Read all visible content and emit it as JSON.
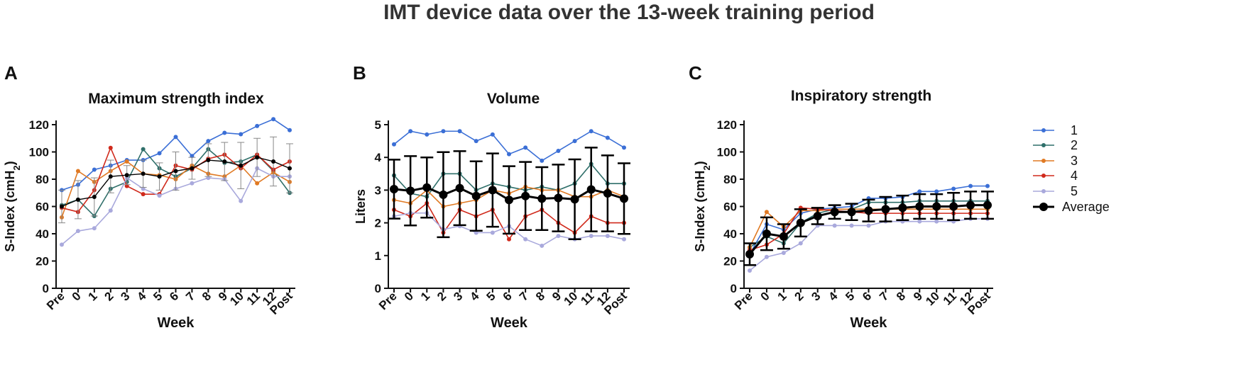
{
  "figure_title": "IMT device data over the 13-week training period",
  "legend": {
    "entries": [
      {
        "label": "1",
        "color": "#3b6fd6"
      },
      {
        "label": "2",
        "color": "#2f6f6a"
      },
      {
        "label": "3",
        "color": "#e07a24"
      },
      {
        "label": "4",
        "color": "#d02a1c"
      },
      {
        "label": "5",
        "color": "#a9a9dc"
      },
      {
        "label": "Average",
        "color": "#000000"
      }
    ]
  },
  "chart_data": [
    {
      "panel": "A",
      "type": "line",
      "title": "Maximum strength index",
      "xlabel": "Week",
      "ylabel": "S-Index (cmH",
      "ylabel_sub": "2",
      "ylabel_end": ")",
      "ylim": [
        0,
        120
      ],
      "yticks": [
        0,
        20,
        40,
        60,
        80,
        100,
        120
      ],
      "categories": [
        "Pre",
        "0",
        "1",
        "2",
        "3",
        "4",
        "5",
        "6",
        "7",
        "8",
        "9",
        "10",
        "11",
        "12",
        "Post"
      ],
      "series": [
        {
          "name": "1",
          "values": [
            72,
            76,
            87,
            90,
            94,
            94,
            99,
            111,
            97,
            108,
            114,
            113,
            119,
            124,
            116
          ]
        },
        {
          "name": "2",
          "values": [
            61,
            65,
            53,
            73,
            78,
            102,
            88,
            82,
            88,
            102,
            92,
            93,
            98,
            86,
            70
          ]
        },
        {
          "name": "3",
          "values": [
            52,
            86,
            78,
            86,
            93,
            84,
            83,
            80,
            90,
            84,
            82,
            90,
            77,
            85,
            78
          ]
        },
        {
          "name": "4",
          "values": [
            59,
            56,
            72,
            103,
            75,
            69,
            69,
            90,
            87,
            95,
            98,
            88,
            98,
            87,
            93
          ]
        },
        {
          "name": "5",
          "values": [
            32,
            42,
            44,
            57,
            81,
            73,
            68,
            73,
            77,
            81,
            80,
            64,
            88,
            82,
            82
          ]
        }
      ],
      "average": {
        "name": "Average",
        "values": [
          60,
          65,
          67,
          82,
          83,
          84,
          82,
          86,
          88,
          94,
          93,
          90,
          96,
          93,
          88
        ],
        "error": [
          12,
          14,
          14,
          12,
          7,
          10,
          10,
          14,
          8,
          12,
          14,
          17,
          14,
          18,
          18
        ]
      }
    },
    {
      "panel": "B",
      "type": "line",
      "title": "Volume",
      "xlabel": "Week",
      "ylabel": "Liters",
      "ylim": [
        0,
        5
      ],
      "yticks": [
        0,
        1,
        2,
        3,
        4,
        5
      ],
      "categories": [
        "Pre",
        "0",
        "1",
        "2",
        "3",
        "4",
        "5",
        "6",
        "7",
        "8",
        "9",
        "10",
        "11",
        "12",
        "Post"
      ],
      "series": [
        {
          "name": "1",
          "values": [
            4.4,
            4.8,
            4.7,
            4.8,
            4.8,
            4.5,
            4.7,
            4.1,
            4.3,
            3.9,
            4.2,
            4.5,
            4.8,
            4.6,
            4.3
          ]
        },
        {
          "name": "2",
          "values": [
            3.45,
            2.9,
            2.8,
            3.5,
            3.5,
            3.0,
            3.2,
            3.1,
            3.0,
            3.1,
            3.0,
            3.2,
            3.8,
            3.2,
            3.2
          ]
        },
        {
          "name": "3",
          "values": [
            2.7,
            2.6,
            3.0,
            2.5,
            2.6,
            2.7,
            3.0,
            2.9,
            3.1,
            3.0,
            3.0,
            2.8,
            2.8,
            3.0,
            2.8
          ]
        },
        {
          "name": "4",
          "values": [
            2.4,
            2.2,
            2.6,
            1.7,
            2.4,
            2.2,
            2.4,
            1.5,
            2.2,
            2.4,
            2.0,
            1.7,
            2.2,
            2.0,
            2.0
          ]
        },
        {
          "name": "5",
          "values": [
            2.2,
            2.3,
            2.3,
            1.8,
            1.9,
            1.7,
            1.7,
            1.9,
            1.5,
            1.3,
            1.6,
            1.5,
            1.6,
            1.6,
            1.5
          ]
        }
      ],
      "average": {
        "name": "Average",
        "values": [
          3.03,
          2.98,
          3.08,
          2.86,
          3.06,
          2.82,
          3.0,
          2.7,
          2.82,
          2.74,
          2.76,
          2.72,
          3.02,
          2.9,
          2.74
        ],
        "error": [
          0.9,
          1.06,
          0.92,
          1.3,
          1.13,
          1.06,
          1.12,
          1.03,
          1.04,
          0.96,
          1.02,
          1.22,
          1.28,
          1.16,
          1.08
        ]
      }
    },
    {
      "panel": "C",
      "type": "line",
      "title": "Inspiratory strength",
      "xlabel": "Week",
      "ylabel": "S-Index (cmH",
      "ylabel_sub": "2",
      "ylabel_end": ")",
      "ylim": [
        0,
        120
      ],
      "yticks": [
        0,
        20,
        40,
        60,
        80,
        100,
        120
      ],
      "categories": [
        "Pre",
        "0",
        "1",
        "2",
        "3",
        "4",
        "5",
        "6",
        "7",
        "8",
        "9",
        "10",
        "11",
        "12",
        "Post"
      ],
      "series": [
        {
          "name": "1",
          "values": [
            25,
            47,
            43,
            55,
            58,
            59,
            60,
            66,
            66,
            67,
            71,
            71,
            73,
            75,
            75
          ]
        },
        {
          "name": "2",
          "values": [
            30,
            38,
            33,
            48,
            55,
            58,
            58,
            63,
            63,
            63,
            64,
            64,
            64,
            64,
            64
          ]
        },
        {
          "name": "3",
          "values": [
            30,
            56,
            45,
            57,
            57,
            58,
            58,
            58,
            58,
            58,
            58,
            58,
            58,
            58,
            58
          ]
        },
        {
          "name": "4",
          "values": [
            28,
            32,
            40,
            59,
            58,
            57,
            56,
            55,
            55,
            55,
            55,
            55,
            55,
            55,
            55
          ]
        },
        {
          "name": "5",
          "values": [
            13,
            23,
            26,
            33,
            46,
            46,
            46,
            46,
            49,
            49,
            49,
            49,
            49,
            51,
            51
          ]
        }
      ],
      "average": {
        "name": "Average",
        "values": [
          25,
          40,
          38,
          48,
          53,
          56,
          56,
          57,
          58,
          59,
          60,
          60,
          60,
          61,
          61
        ],
        "error": [
          8,
          12,
          9,
          10,
          6,
          5,
          6,
          8,
          9,
          9,
          9,
          9,
          10,
          10,
          10
        ]
      }
    }
  ]
}
